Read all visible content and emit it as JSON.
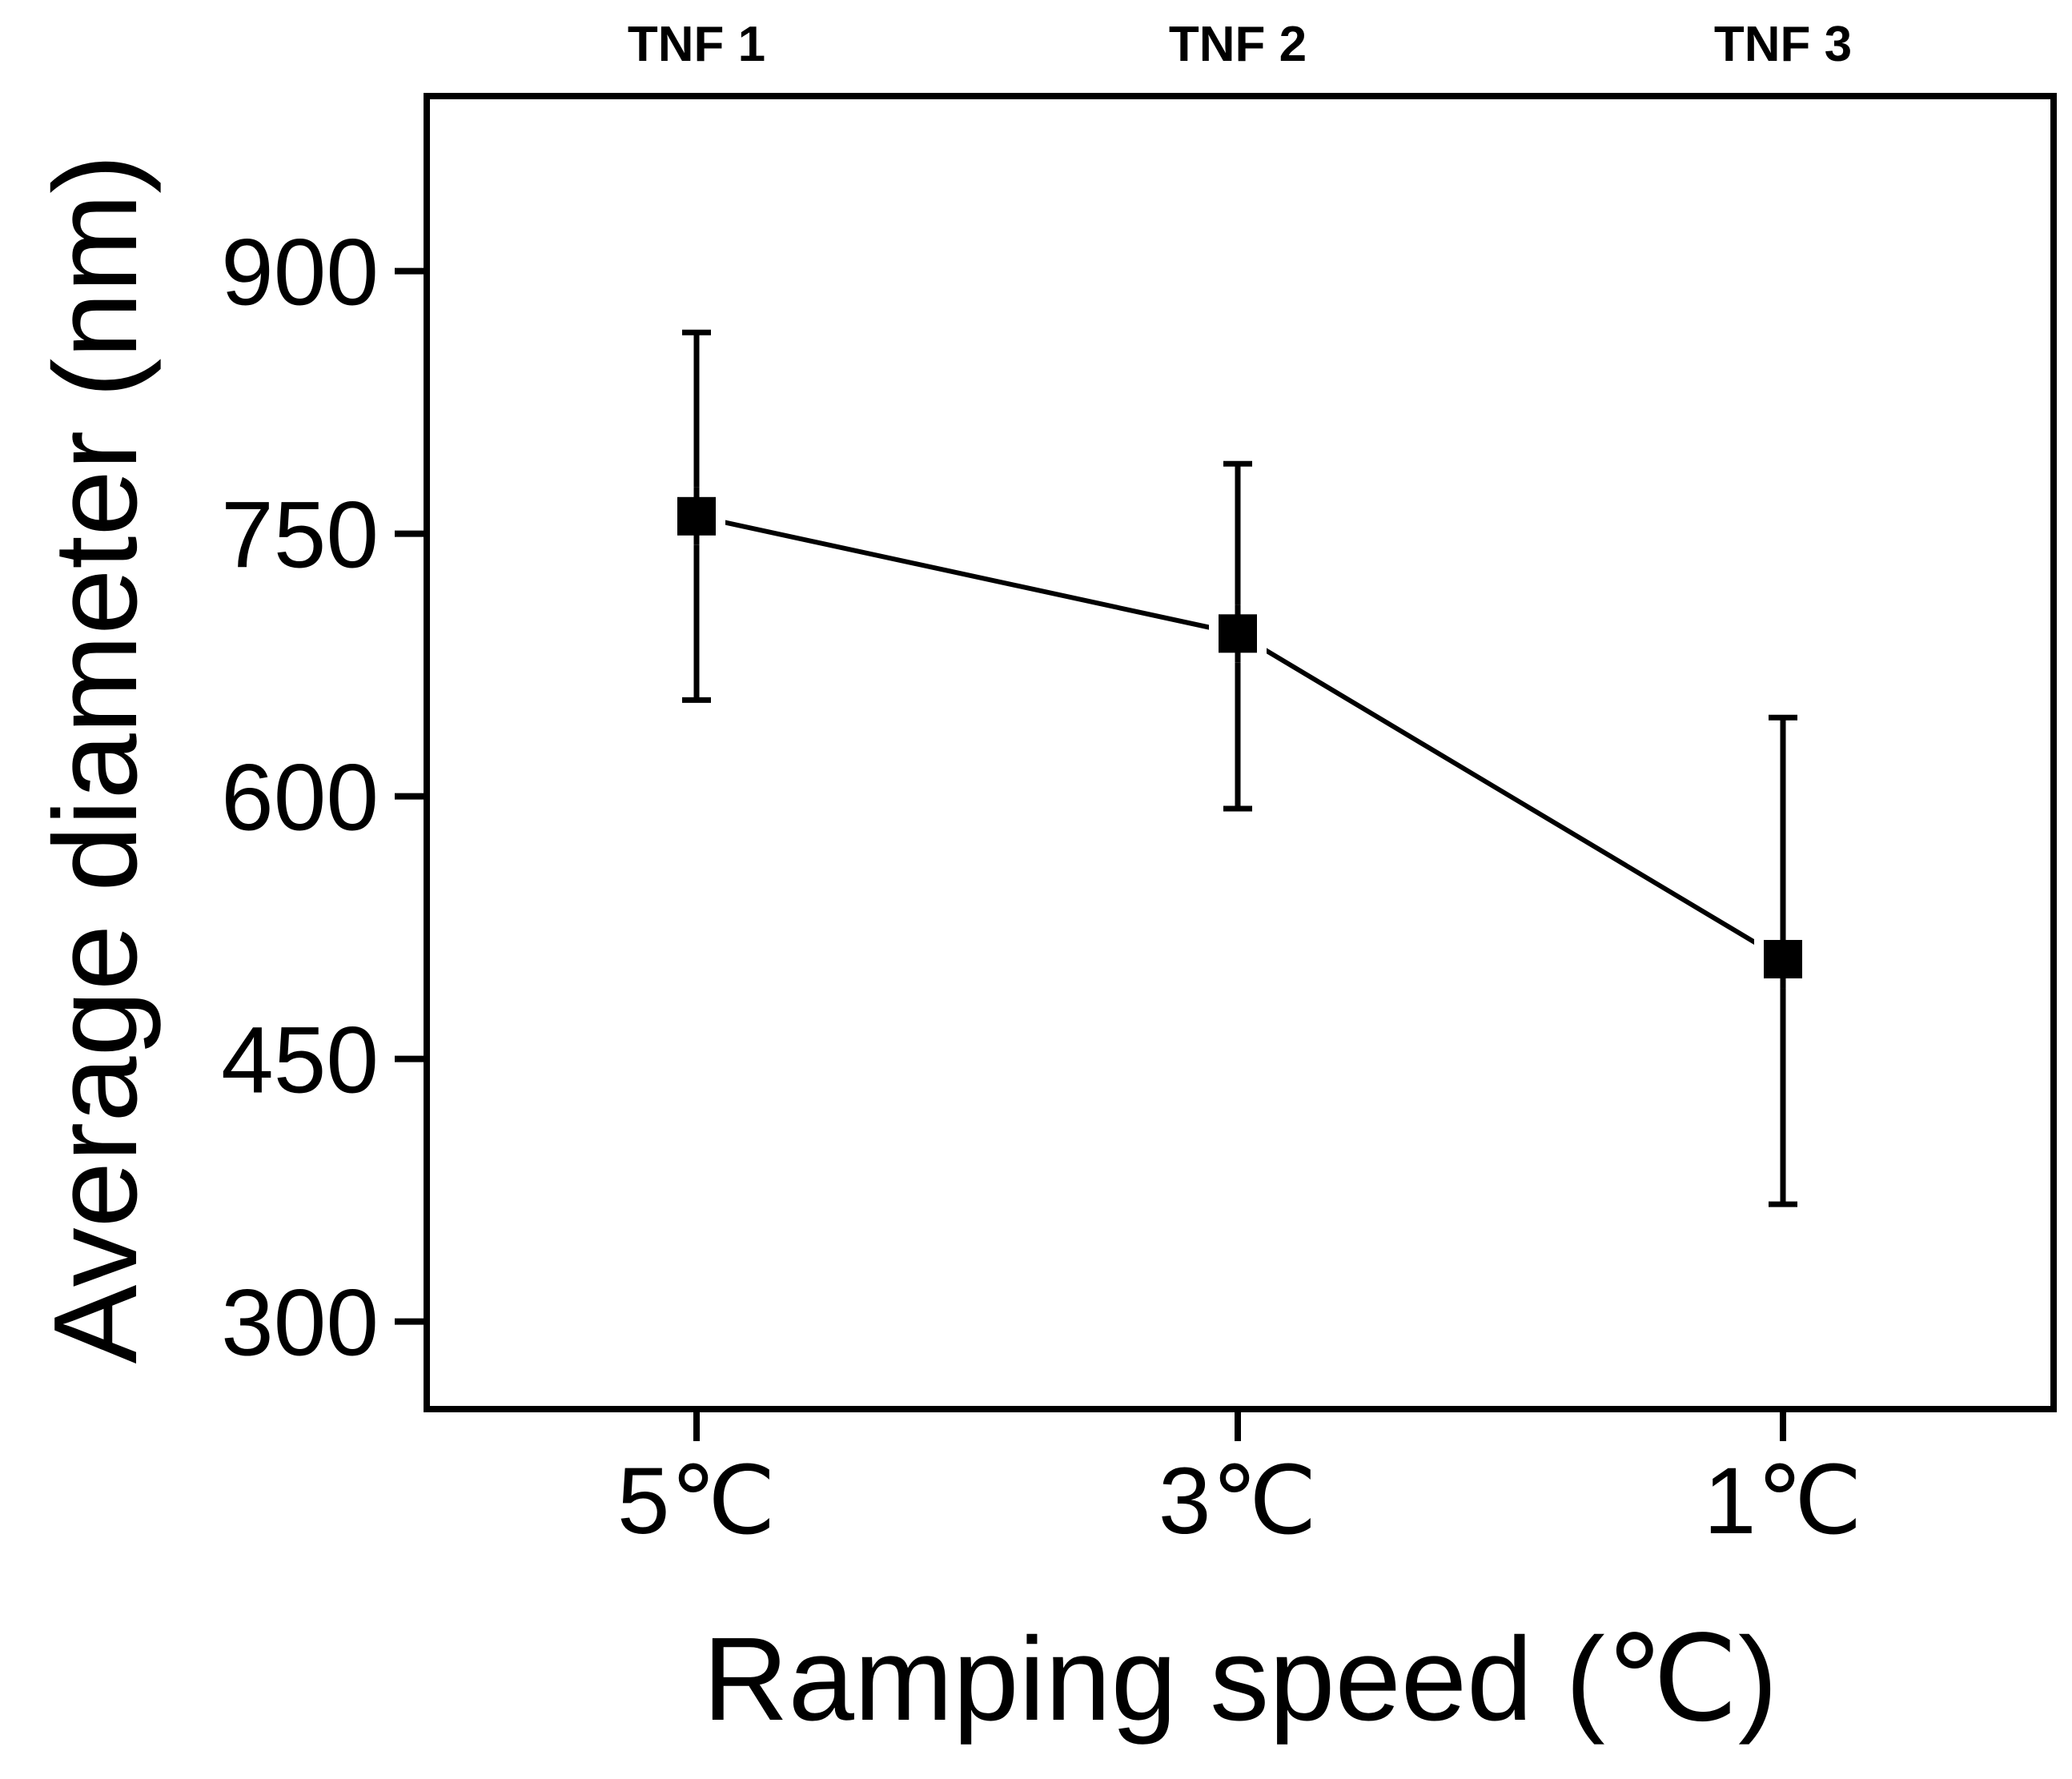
{
  "chart_data": {
    "type": "line",
    "title": "",
    "xlabel": "Ramping speed (℃)",
    "ylabel": "Average diameter (nm)",
    "categories": [
      "5℃",
      "3℃",
      "1℃"
    ],
    "top_labels": [
      "TNF 1",
      "TNF 2",
      "TNF 3"
    ],
    "series": [
      {
        "name": "Average diameter",
        "values": [
          760,
          693,
          507
        ],
        "error_low": [
          655,
          593,
          367
        ],
        "error_high": [
          865,
          790,
          645
        ]
      }
    ],
    "ylim": [
      250,
      1000
    ],
    "yticks": [
      300,
      450,
      600,
      750,
      900
    ],
    "ytick_labels": [
      "300",
      "450",
      "600",
      "750",
      "900"
    ],
    "grid": false,
    "colors": {
      "line": "#000000",
      "marker": "#000000",
      "frame": "#000000"
    }
  }
}
